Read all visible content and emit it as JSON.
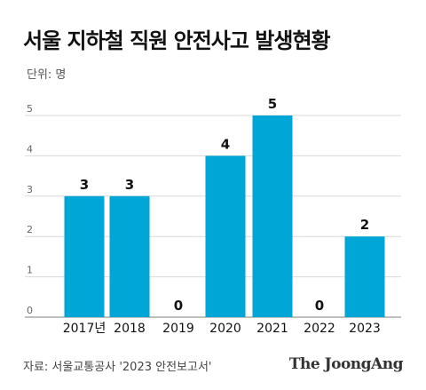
{
  "header": {
    "title": "서울 지하철 직원 안전사고 발생현황",
    "unit": "단위: 명"
  },
  "footer": {
    "source": "자료: 서울교통공사 '2023 안전보고서'",
    "logo": "The JoongAng"
  },
  "colors": {
    "bar": "#00a6d6",
    "grid": "#d9d9d9",
    "text": "#111111",
    "tick": "#666666"
  },
  "chart_data": {
    "type": "bar",
    "title": "서울 지하철 직원 안전사고 발생현황",
    "ylabel": "",
    "xlabel": "",
    "unit": "단위: 명",
    "categories": [
      "2017년",
      "2018",
      "2019",
      "2020",
      "2021",
      "2022",
      "2023"
    ],
    "values": [
      3,
      3,
      0,
      4,
      5,
      0,
      2
    ],
    "data_labels": [
      "3",
      "3",
      "0",
      "4",
      "5",
      "0",
      "2"
    ],
    "yticks": [
      "0",
      "1",
      "2",
      "3",
      "4",
      "5"
    ],
    "ylim": [
      0,
      5
    ],
    "grid": true,
    "legend": "none"
  }
}
